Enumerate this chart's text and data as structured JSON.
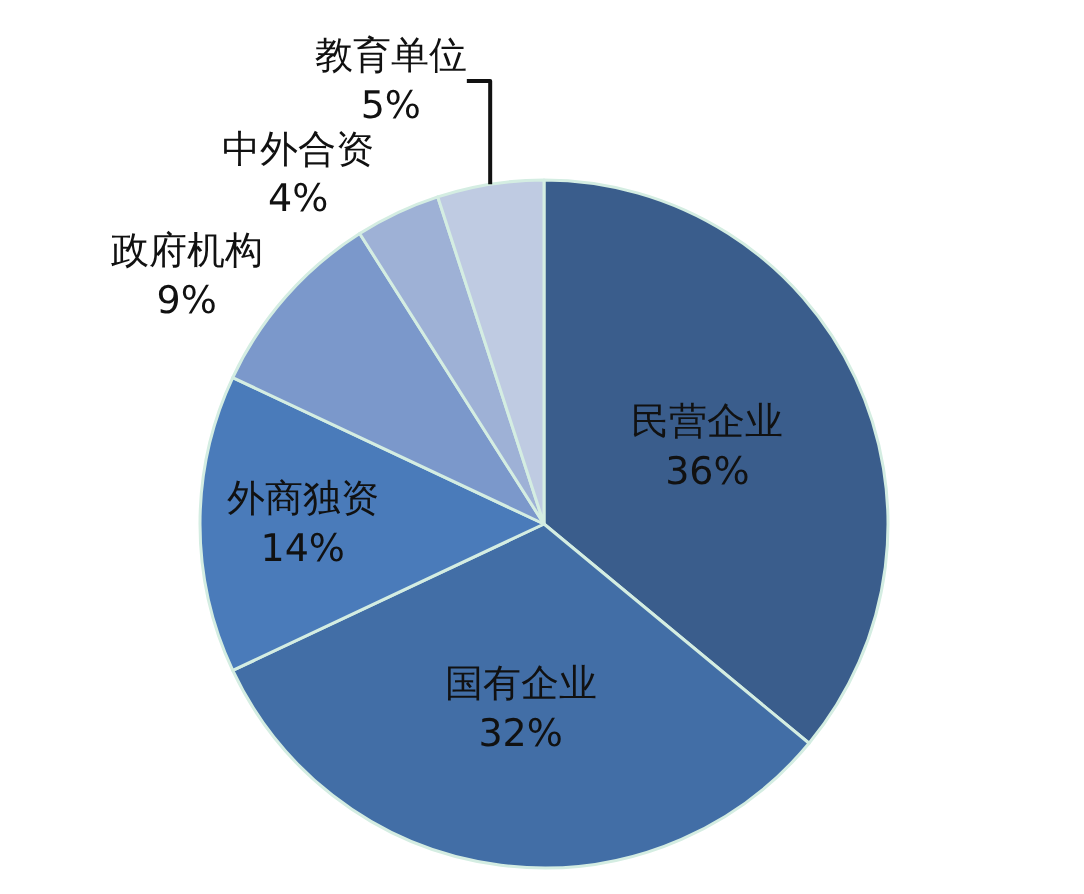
{
  "chart_data": {
    "type": "pie",
    "categories": [
      "民营企业",
      "国有企业",
      "外商独资",
      "政府机构",
      "中外合资",
      "教育单位"
    ],
    "values": [
      36,
      32,
      14,
      9,
      4,
      5
    ],
    "value_labels": [
      "36%",
      "32%",
      "14%",
      "9%",
      "4%",
      "5%"
    ],
    "colors": [
      "#3a5d8c",
      "#426ea6",
      "#4a7bba",
      "#7b98cb",
      "#9eb1d6",
      "#bfcbe2"
    ]
  }
}
